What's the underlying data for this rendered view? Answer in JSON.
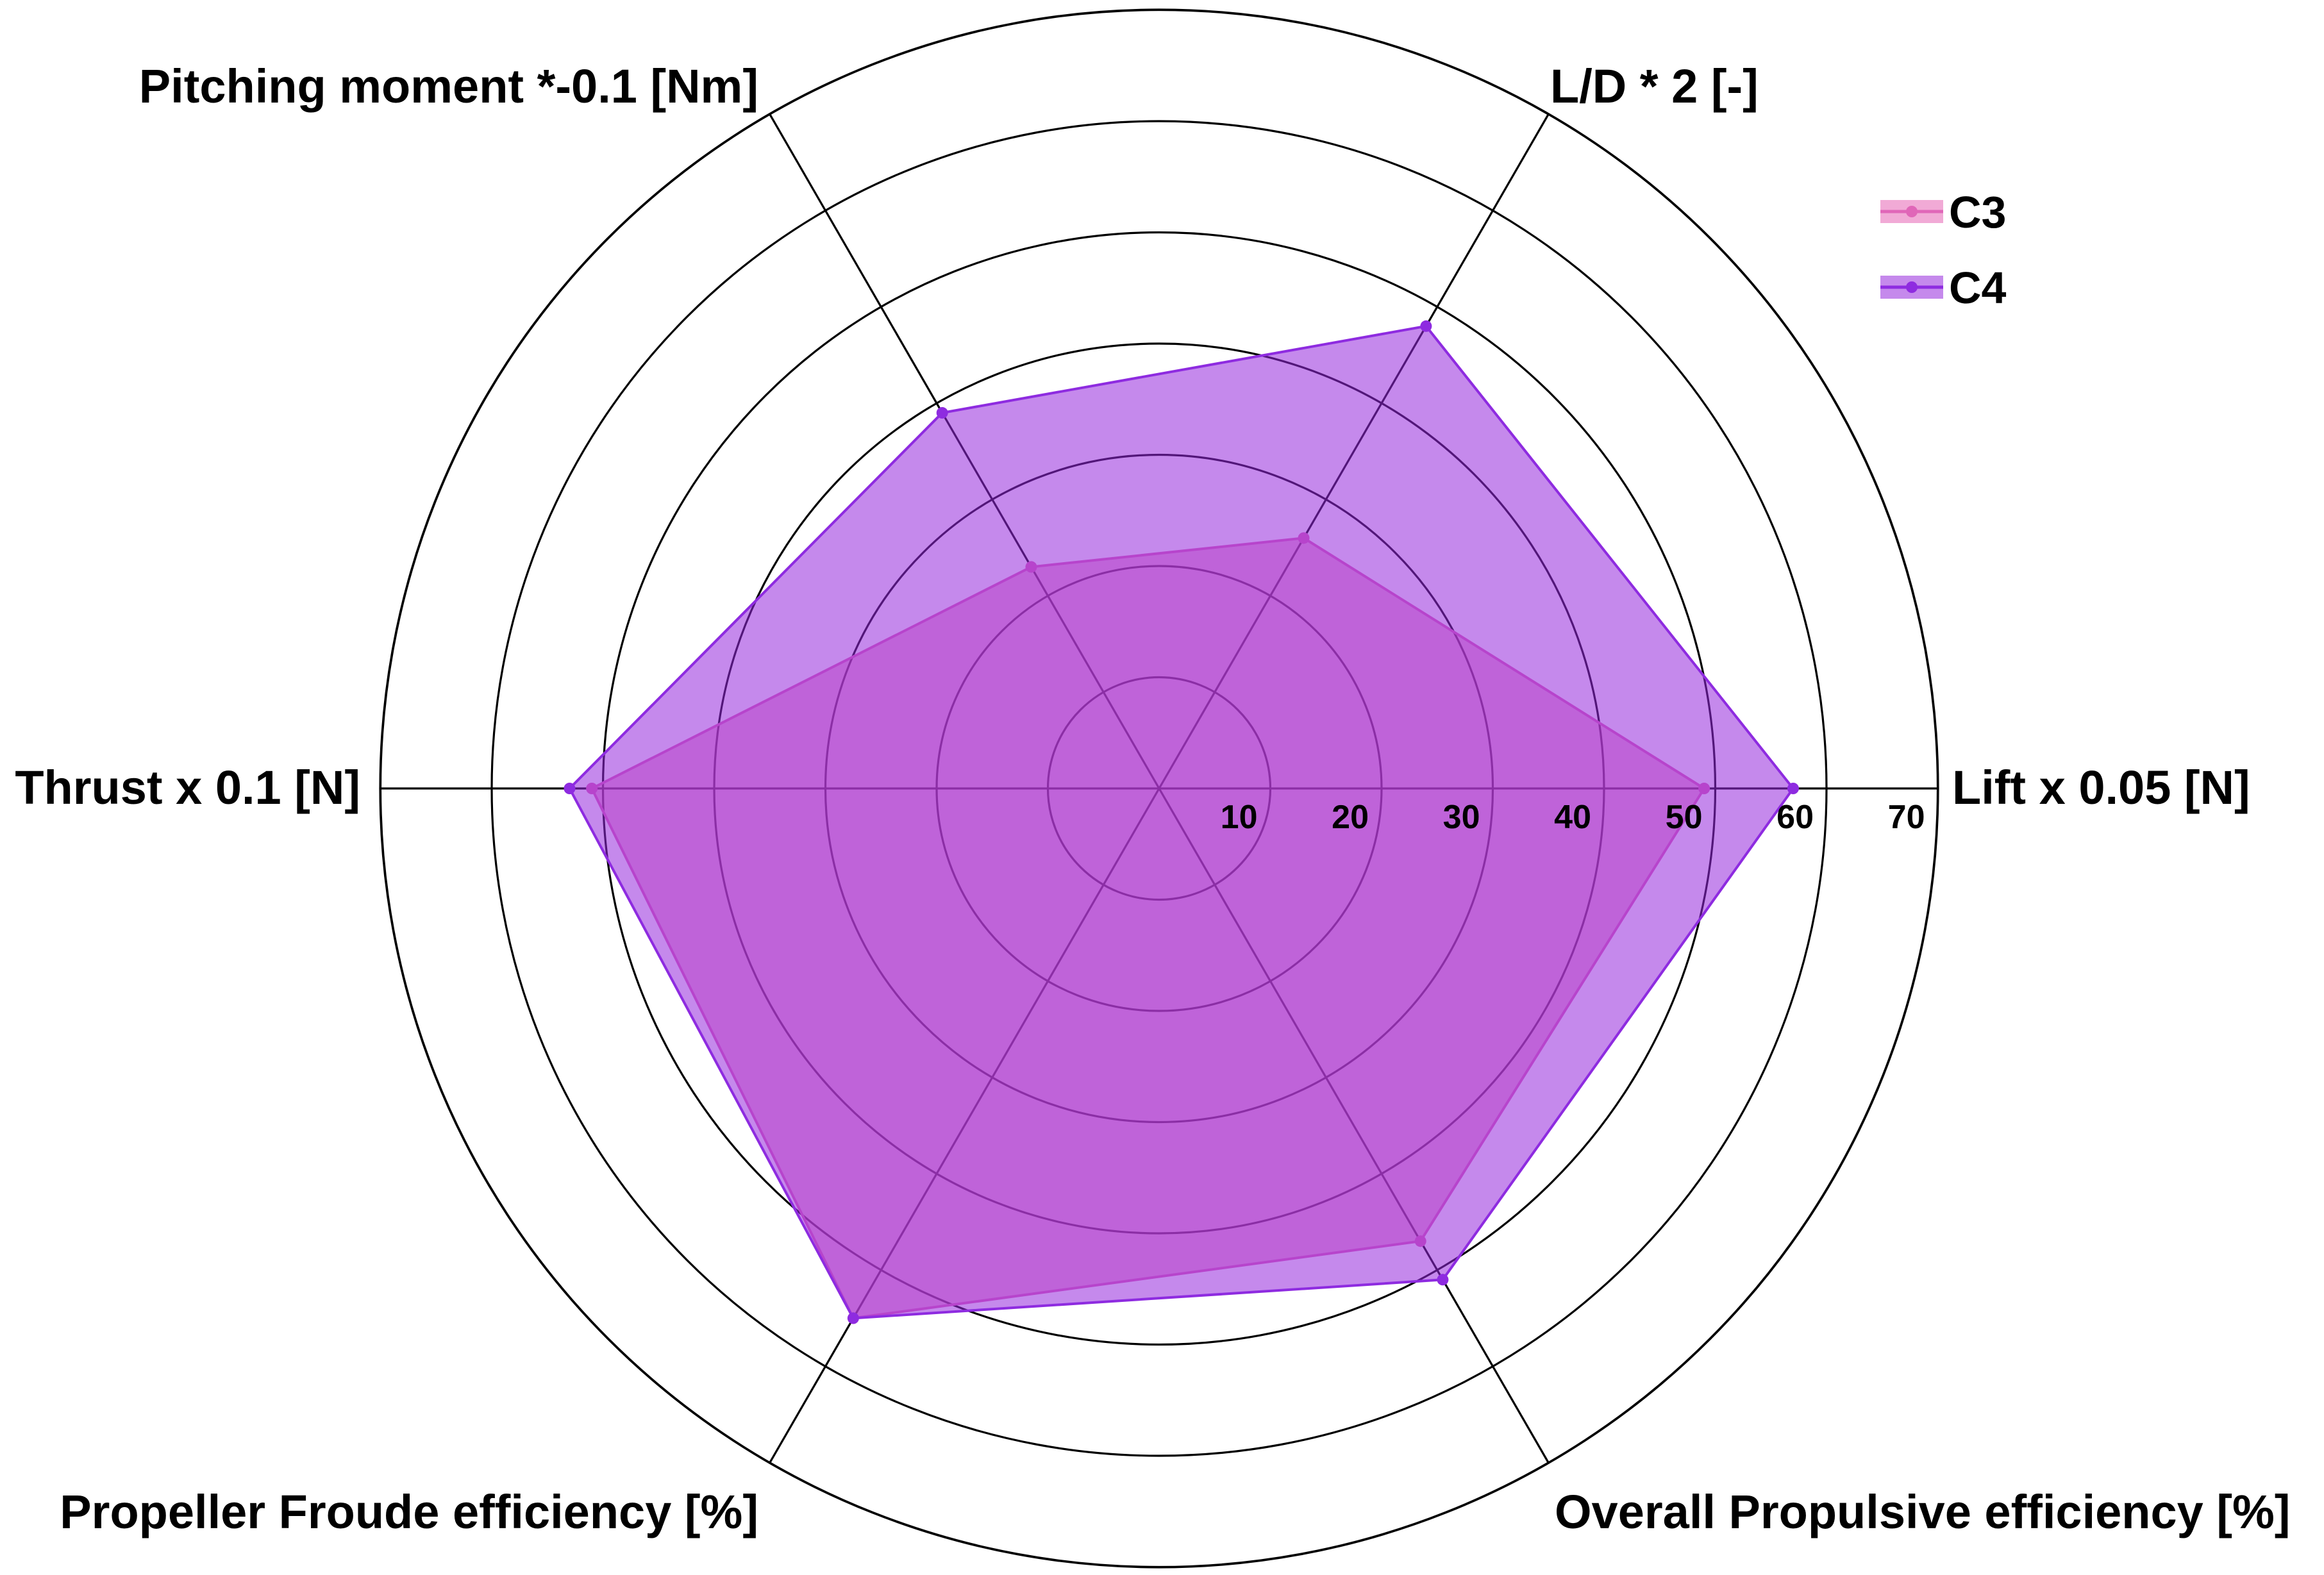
{
  "chart_data": {
    "type": "radar",
    "axes": [
      "Lift x 0.05 [N]",
      "L/D * 2 [-]",
      "Pitching moment *-0.1 [Nm]",
      "Thrust x 0.1 [N]",
      "Propeller Froude efficiency [%]",
      "Overall Propulsive efficiency [%]"
    ],
    "r_ticks": [
      "10",
      "20",
      "30",
      "40",
      "50",
      "60",
      "70"
    ],
    "r_range": [
      0,
      70
    ],
    "series": [
      {
        "name": "C3",
        "color": "#E066B8",
        "values": [
          49,
          26,
          23,
          51,
          55,
          47
        ]
      },
      {
        "name": "C4",
        "color": "#8E2BE0",
        "values": [
          57,
          48,
          39,
          53,
          55,
          51
        ]
      }
    ],
    "legend_position": "top-right",
    "grid": true
  }
}
